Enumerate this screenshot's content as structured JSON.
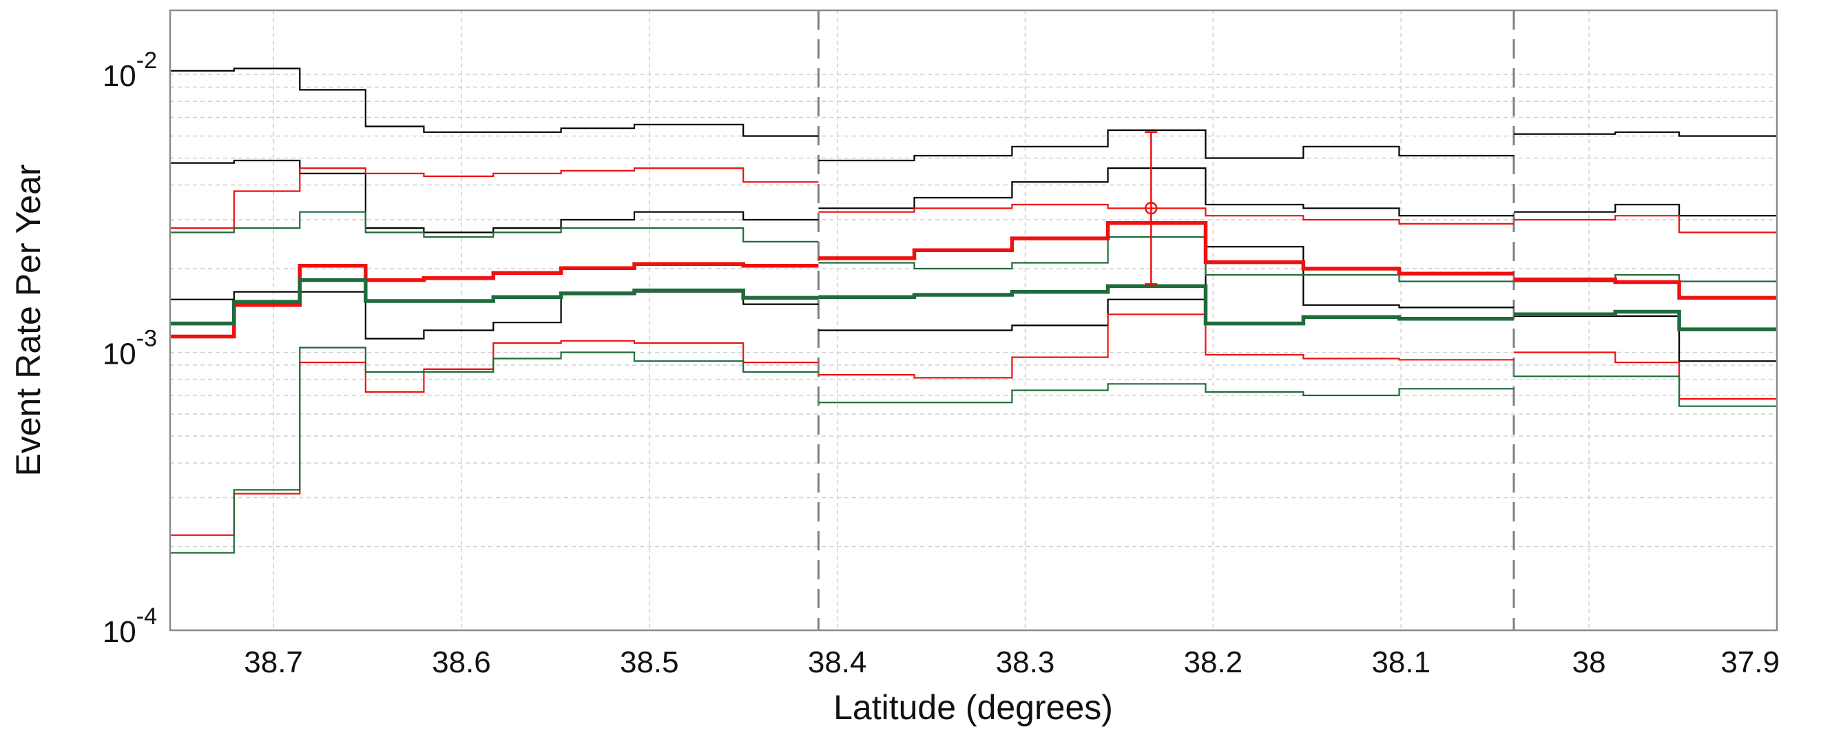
{
  "chart_data": {
    "type": "line",
    "step": true,
    "xlabel": "Latitude (degrees)",
    "ylabel": "Event Rate Per Year",
    "xlim": [
      38.755,
      37.9
    ],
    "x_reversed": true,
    "ylim": [
      0.0001,
      0.017
    ],
    "y_scale": "log",
    "grid": true,
    "x_ticks": [
      38.7,
      38.6,
      38.5,
      38.4,
      38.3,
      38.2,
      38.1,
      38.0,
      37.9
    ],
    "x_tick_labels": [
      "38.7",
      "38.6",
      "38.5",
      "38.4",
      "38.3",
      "38.2",
      "38.1",
      "38",
      "37.9"
    ],
    "y_ticks": [
      {
        "value": 0.01,
        "base": "10",
        "exp": "-2"
      },
      {
        "value": 0.001,
        "base": "10",
        "exp": "-3"
      },
      {
        "value": 0.0001,
        "base": "10",
        "exp": "-4"
      }
    ],
    "vertical_dividers": [
      38.41,
      38.04
    ],
    "segments": [
      {
        "x_start": 38.755,
        "edges": [
          38.721,
          38.686,
          38.651,
          38.62,
          38.583,
          38.547,
          38.508,
          38.45,
          38.41
        ]
      },
      {
        "x_start": 38.41,
        "edges": [
          38.359,
          38.307,
          38.256,
          38.204,
          38.152,
          38.101,
          38.04
        ]
      },
      {
        "x_start": 38.04,
        "edges": [
          37.986,
          37.952,
          37.9
        ]
      }
    ],
    "series": [
      {
        "color": "#000000",
        "width": 2.2,
        "segments": [
          [
            0.0103,
            0.0105,
            0.0088,
            0.0065,
            0.0062,
            0.0062,
            0.0064,
            0.0066,
            0.006
          ],
          [
            0.0049,
            0.0051,
            0.0055,
            0.0063,
            0.005,
            0.0055,
            0.0051
          ],
          [
            0.0061,
            0.0062,
            0.006
          ]
        ]
      },
      {
        "color": "#000000",
        "width": 2.2,
        "segments": [
          [
            0.0048,
            0.0049,
            0.0044,
            0.0028,
            0.0027,
            0.0028,
            0.003,
            0.0032,
            0.003
          ],
          [
            0.0033,
            0.0036,
            0.0041,
            0.0046,
            0.0034,
            0.0033,
            0.0031
          ],
          [
            0.0032,
            0.0034,
            0.0031
          ]
        ]
      },
      {
        "color": "#000000",
        "width": 2.2,
        "segments": [
          [
            0.00155,
            0.00165,
            0.00165,
            0.00112,
            0.0012,
            0.00128,
            0.00162,
            0.00165,
            0.00149
          ],
          [
            0.0012,
            0.0012,
            0.00125,
            0.00155,
            0.0024,
            0.00148,
            0.00145
          ],
          [
            0.00135,
            0.00135,
            0.00093
          ]
        ]
      },
      {
        "color": "#ee1111",
        "width": 2.2,
        "segments": [
          [
            0.0028,
            0.0038,
            0.0046,
            0.0044,
            0.0043,
            0.0044,
            0.0045,
            0.0046,
            0.0041
          ],
          [
            0.0032,
            0.0033,
            0.0034,
            0.0033,
            0.0031,
            0.003,
            0.0029
          ],
          [
            0.003,
            0.0031,
            0.0027
          ]
        ]
      },
      {
        "color": "#ee1111",
        "width": 2.2,
        "segments": [
          [
            0.00022,
            0.00031,
            0.00092,
            0.00072,
            0.00087,
            0.00108,
            0.0011,
            0.00108,
            0.00092
          ],
          [
            0.00083,
            0.00081,
            0.00096,
            0.00137,
            0.00098,
            0.00095,
            0.00094
          ],
          [
            0.001,
            0.00092,
            0.00068
          ]
        ]
      },
      {
        "color": "#1f6b3c",
        "width": 2.2,
        "segments": [
          [
            0.0027,
            0.0028,
            0.0032,
            0.0027,
            0.0026,
            0.0027,
            0.0028,
            0.0028,
            0.0025
          ],
          [
            0.0021,
            0.002,
            0.0021,
            0.0026,
            0.0019,
            0.0019,
            0.0018
          ],
          [
            0.0018,
            0.0019,
            0.0018
          ]
        ]
      },
      {
        "color": "#1f6b3c",
        "width": 2.2,
        "segments": [
          [
            0.00019,
            0.00032,
            0.00104,
            0.00085,
            0.00085,
            0.00095,
            0.001,
            0.00093,
            0.00085
          ],
          [
            0.00066,
            0.00066,
            0.00073,
            0.00077,
            0.00072,
            0.0007,
            0.00074
          ],
          [
            0.00082,
            0.00082,
            0.00064
          ]
        ]
      },
      {
        "color": "#ee1111",
        "width": 5.5,
        "segments": [
          [
            0.00114,
            0.00148,
            0.00205,
            0.00182,
            0.00185,
            0.00193,
            0.00201,
            0.00208,
            0.00205
          ],
          [
            0.00218,
            0.00233,
            0.00257,
            0.00292,
            0.00211,
            0.002,
            0.00192
          ],
          [
            0.00183,
            0.00179,
            0.00157
          ]
        ]
      },
      {
        "color": "#1f6b3c",
        "width": 5.5,
        "segments": [
          [
            0.00127,
            0.00152,
            0.00182,
            0.00153,
            0.00153,
            0.00158,
            0.00163,
            0.00167,
            0.00157
          ],
          [
            0.00158,
            0.00161,
            0.00165,
            0.00173,
            0.00127,
            0.00134,
            0.00132
          ],
          [
            0.00137,
            0.0014,
            0.00121
          ]
        ]
      }
    ],
    "error_bar": {
      "x": 38.233,
      "y": 0.0033,
      "y_low": 0.00176,
      "y_high": 0.0062,
      "color": "#ee1111"
    }
  }
}
